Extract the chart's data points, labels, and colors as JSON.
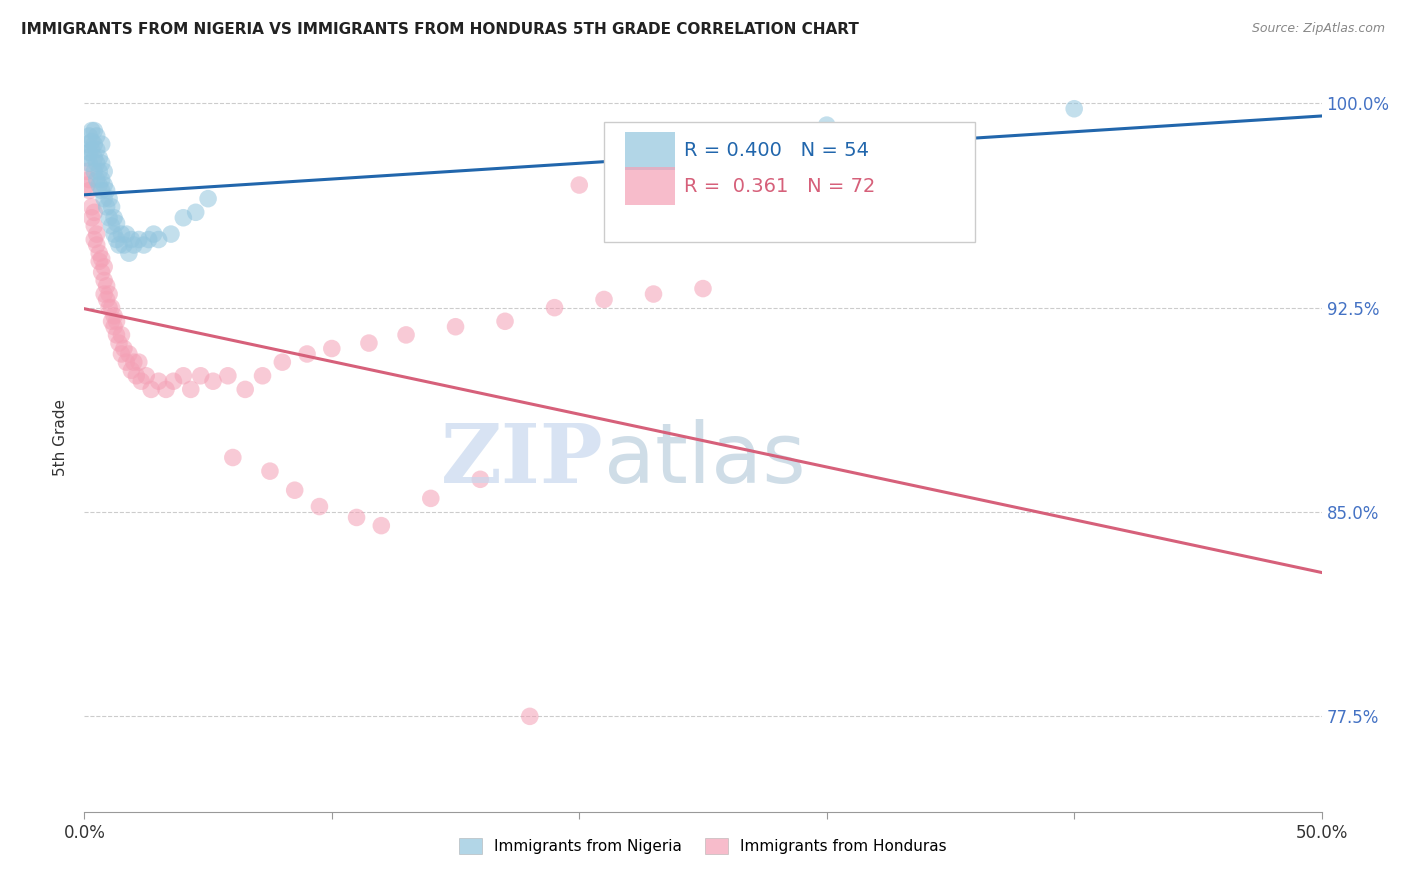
{
  "title": "IMMIGRANTS FROM NIGERIA VS IMMIGRANTS FROM HONDURAS 5TH GRADE CORRELATION CHART",
  "source": "Source: ZipAtlas.com",
  "ylabel": "5th Grade",
  "nigeria_R": 0.4,
  "nigeria_N": 54,
  "honduras_R": 0.361,
  "honduras_N": 72,
  "nigeria_color": "#92c5de",
  "honduras_color": "#f4a0b5",
  "nigeria_line_color": "#2166ac",
  "honduras_line_color": "#d6607a",
  "xlim": [
    0.0,
    0.5
  ],
  "ylim": [
    0.74,
    1.015
  ],
  "yticks": [
    0.775,
    0.85,
    0.925,
    1.0
  ],
  "ytick_labels": [
    "77.5%",
    "85.0%",
    "92.5%",
    "100.0%"
  ],
  "xticks": [
    0.0,
    0.1,
    0.2,
    0.3,
    0.4,
    0.5
  ],
  "xtick_labels": [
    "0.0%",
    "",
    "",
    "",
    "",
    "50.0%"
  ],
  "nigeria_x": [
    0.001,
    0.001,
    0.002,
    0.002,
    0.002,
    0.003,
    0.003,
    0.003,
    0.004,
    0.004,
    0.004,
    0.004,
    0.005,
    0.005,
    0.005,
    0.005,
    0.006,
    0.006,
    0.006,
    0.007,
    0.007,
    0.007,
    0.007,
    0.008,
    0.008,
    0.008,
    0.009,
    0.009,
    0.01,
    0.01,
    0.011,
    0.011,
    0.012,
    0.012,
    0.013,
    0.013,
    0.014,
    0.015,
    0.016,
    0.017,
    0.018,
    0.019,
    0.02,
    0.022,
    0.024,
    0.026,
    0.028,
    0.03,
    0.035,
    0.04,
    0.045,
    0.05,
    0.3,
    0.4
  ],
  "nigeria_y": [
    0.98,
    0.985,
    0.982,
    0.988,
    0.978,
    0.983,
    0.986,
    0.99,
    0.975,
    0.98,
    0.985,
    0.99,
    0.972,
    0.978,
    0.983,
    0.988,
    0.97,
    0.975,
    0.98,
    0.968,
    0.972,
    0.978,
    0.985,
    0.965,
    0.97,
    0.975,
    0.962,
    0.968,
    0.958,
    0.965,
    0.955,
    0.962,
    0.952,
    0.958,
    0.95,
    0.956,
    0.948,
    0.952,
    0.948,
    0.952,
    0.945,
    0.95,
    0.948,
    0.95,
    0.948,
    0.95,
    0.952,
    0.95,
    0.952,
    0.958,
    0.96,
    0.965,
    0.992,
    0.998
  ],
  "honduras_x": [
    0.001,
    0.001,
    0.002,
    0.002,
    0.003,
    0.003,
    0.004,
    0.004,
    0.004,
    0.005,
    0.005,
    0.006,
    0.006,
    0.007,
    0.007,
    0.008,
    0.008,
    0.008,
    0.009,
    0.009,
    0.01,
    0.01,
    0.011,
    0.011,
    0.012,
    0.012,
    0.013,
    0.013,
    0.014,
    0.015,
    0.015,
    0.016,
    0.017,
    0.018,
    0.019,
    0.02,
    0.021,
    0.022,
    0.023,
    0.025,
    0.027,
    0.03,
    0.033,
    0.036,
    0.04,
    0.043,
    0.047,
    0.052,
    0.058,
    0.065,
    0.072,
    0.08,
    0.09,
    0.1,
    0.115,
    0.13,
    0.15,
    0.17,
    0.19,
    0.21,
    0.23,
    0.25,
    0.06,
    0.075,
    0.085,
    0.095,
    0.11,
    0.12,
    0.14,
    0.16,
    0.18,
    0.2
  ],
  "honduras_y": [
    0.975,
    0.97,
    0.968,
    0.972,
    0.962,
    0.958,
    0.955,
    0.96,
    0.95,
    0.948,
    0.952,
    0.945,
    0.942,
    0.938,
    0.943,
    0.935,
    0.93,
    0.94,
    0.928,
    0.933,
    0.925,
    0.93,
    0.92,
    0.925,
    0.918,
    0.922,
    0.915,
    0.92,
    0.912,
    0.908,
    0.915,
    0.91,
    0.905,
    0.908,
    0.902,
    0.905,
    0.9,
    0.905,
    0.898,
    0.9,
    0.895,
    0.898,
    0.895,
    0.898,
    0.9,
    0.895,
    0.9,
    0.898,
    0.9,
    0.895,
    0.9,
    0.905,
    0.908,
    0.91,
    0.912,
    0.915,
    0.918,
    0.92,
    0.925,
    0.928,
    0.93,
    0.932,
    0.87,
    0.865,
    0.858,
    0.852,
    0.848,
    0.845,
    0.855,
    0.862,
    0.775,
    0.97
  ]
}
